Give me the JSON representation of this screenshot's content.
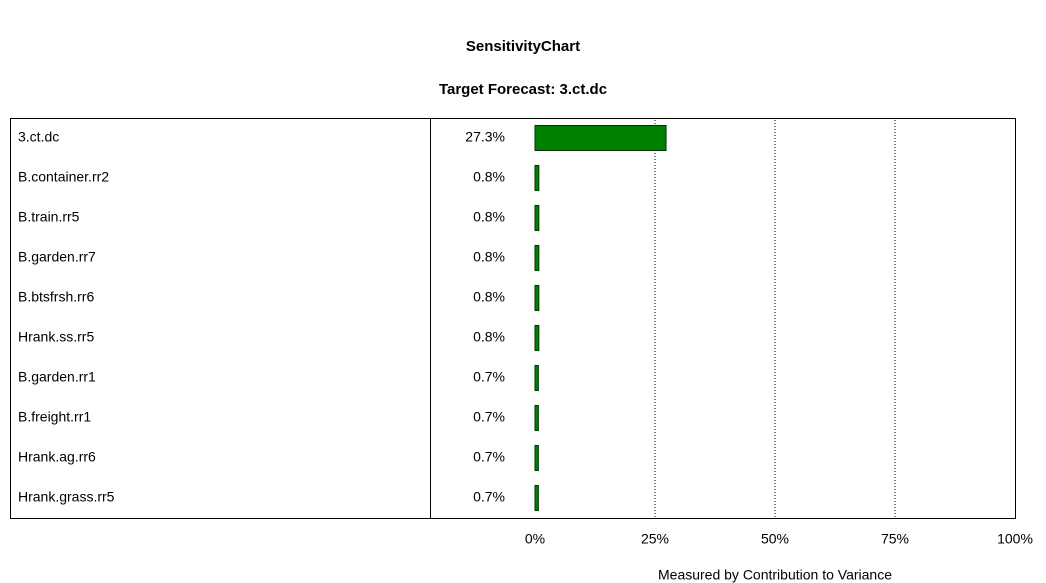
{
  "chart_data": {
    "type": "bar",
    "orientation": "horizontal",
    "title": "SensitivityChart",
    "subtitle": "Target Forecast: 3.ct.dc",
    "x_label": "Measured by Contribution to Variance",
    "categories": [
      "3.ct.dc",
      "B.container.rr2",
      "B.train.rr5",
      "B.garden.rr7",
      "B.btsfrsh.rr6",
      "Hrank.ss.rr5",
      "B.garden.rr1",
      "B.freight.rr1",
      "Hrank.ag.rr6",
      "Hrank.grass.rr5"
    ],
    "values": [
      27.3,
      0.8,
      0.8,
      0.8,
      0.8,
      0.8,
      0.7,
      0.7,
      0.7,
      0.7
    ],
    "value_labels": [
      "27.3%",
      "0.8%",
      "0.8%",
      "0.8%",
      "0.8%",
      "0.8%",
      "0.7%",
      "0.7%",
      "0.7%",
      "0.7%"
    ],
    "color": "#008000",
    "xlim": [
      0,
      100
    ],
    "xticks": [
      {
        "value": 0,
        "label": "0%"
      },
      {
        "value": 25,
        "label": "25%"
      },
      {
        "value": 50,
        "label": "50%"
      },
      {
        "value": 75,
        "label": "75%"
      },
      {
        "value": 100,
        "label": "100%"
      }
    ],
    "grid": true
  }
}
